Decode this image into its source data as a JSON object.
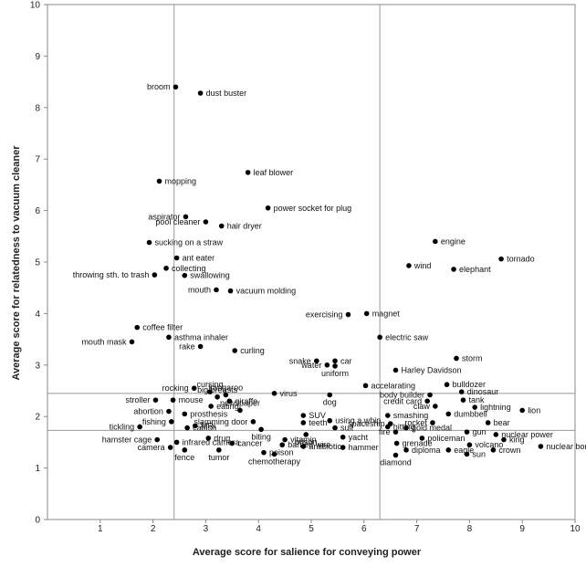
{
  "chart_data": {
    "type": "scatter",
    "title": "",
    "xlabel": "Average score for salience for conveying power",
    "ylabel": "Average score for relatedness to vacuum cleaner",
    "xlim": [
      0,
      10
    ],
    "ylim": [
      0,
      10
    ],
    "xticks": [
      1,
      2,
      3,
      4,
      5,
      6,
      7,
      8,
      9,
      10
    ],
    "yticks": [
      0,
      1,
      2,
      3,
      4,
      5,
      6,
      7,
      8,
      9,
      10
    ],
    "grid": false,
    "reference_lines": {
      "vertical": [
        2.4,
        6.3
      ],
      "horizontal": [
        2.45,
        1.73
      ]
    },
    "points": [
      {
        "label": "broom",
        "x": 2.43,
        "y": 8.4,
        "side": "left"
      },
      {
        "label": "dust buster",
        "x": 2.9,
        "y": 8.28,
        "side": "right"
      },
      {
        "label": "leaf blower",
        "x": 3.8,
        "y": 6.74,
        "side": "right"
      },
      {
        "label": "mopping",
        "x": 2.12,
        "y": 6.57,
        "side": "right"
      },
      {
        "label": "power socket for plug",
        "x": 4.18,
        "y": 6.05,
        "side": "right"
      },
      {
        "label": "aspirator",
        "x": 2.62,
        "y": 5.88,
        "side": "left"
      },
      {
        "label": "pool cleaner",
        "x": 3.0,
        "y": 5.78,
        "side": "left"
      },
      {
        "label": "hair dryer",
        "x": 3.3,
        "y": 5.7,
        "side": "right"
      },
      {
        "label": "sucking on a straw",
        "x": 1.93,
        "y": 5.38,
        "side": "right"
      },
      {
        "label": "engine",
        "x": 7.35,
        "y": 5.4,
        "side": "right"
      },
      {
        "label": "tornado",
        "x": 8.6,
        "y": 5.06,
        "side": "right"
      },
      {
        "label": "ant eater",
        "x": 2.45,
        "y": 5.08,
        "side": "right"
      },
      {
        "label": "collecting",
        "x": 2.25,
        "y": 4.88,
        "side": "right"
      },
      {
        "label": "wind",
        "x": 6.85,
        "y": 4.93,
        "side": "right"
      },
      {
        "label": "elephant",
        "x": 7.7,
        "y": 4.86,
        "side": "right"
      },
      {
        "label": "throwing sth. to trash",
        "x": 2.03,
        "y": 4.75,
        "side": "left"
      },
      {
        "label": "swallowing",
        "x": 2.6,
        "y": 4.74,
        "side": "right"
      },
      {
        "label": "mouth",
        "x": 3.2,
        "y": 4.46,
        "side": "left"
      },
      {
        "label": "vacuum molding",
        "x": 3.47,
        "y": 4.44,
        "side": "right"
      },
      {
        "label": "exercising",
        "x": 5.7,
        "y": 3.98,
        "side": "left"
      },
      {
        "label": "magnet",
        "x": 6.05,
        "y": 4.0,
        "side": "right"
      },
      {
        "label": "coffee filter",
        "x": 1.7,
        "y": 3.73,
        "side": "right"
      },
      {
        "label": "asthma inhaler",
        "x": 2.3,
        "y": 3.54,
        "side": "right"
      },
      {
        "label": "electric saw",
        "x": 6.3,
        "y": 3.54,
        "side": "right"
      },
      {
        "label": "mouth mask",
        "x": 1.6,
        "y": 3.45,
        "side": "left"
      },
      {
        "label": "rake",
        "x": 2.9,
        "y": 3.36,
        "side": "left"
      },
      {
        "label": "curling",
        "x": 3.55,
        "y": 3.28,
        "side": "right"
      },
      {
        "label": "snake",
        "x": 5.1,
        "y": 3.08,
        "side": "left"
      },
      {
        "label": "car",
        "x": 5.45,
        "y": 3.08,
        "side": "right"
      },
      {
        "label": "storm",
        "x": 7.75,
        "y": 3.13,
        "side": "right"
      },
      {
        "label": "water",
        "x": 5.3,
        "y": 3.0,
        "side": "left"
      },
      {
        "label": "uniform",
        "x": 5.45,
        "y": 2.98,
        "side": "below"
      },
      {
        "label": "Harley Davidson",
        "x": 6.6,
        "y": 2.9,
        "side": "right"
      },
      {
        "label": "accelarating",
        "x": 6.03,
        "y": 2.6,
        "side": "right"
      },
      {
        "label": "bulldozer",
        "x": 7.57,
        "y": 2.62,
        "side": "right"
      },
      {
        "label": "rocking",
        "x": 2.78,
        "y": 2.55,
        "side": "left"
      },
      {
        "label": "cursing",
        "x": 3.08,
        "y": 2.48,
        "side": "above"
      },
      {
        "label": "kangaroo",
        "x": 3.38,
        "y": 2.42,
        "side": "above"
      },
      {
        "label": "virus",
        "x": 4.3,
        "y": 2.45,
        "side": "right"
      },
      {
        "label": "dinosaur",
        "x": 7.85,
        "y": 2.48,
        "side": "right"
      },
      {
        "label": "big breasts",
        "x": 3.22,
        "y": 2.38,
        "side": "above"
      },
      {
        "label": "dog",
        "x": 5.35,
        "y": 2.42,
        "side": "below"
      },
      {
        "label": "body builder",
        "x": 7.25,
        "y": 2.42,
        "side": "left"
      },
      {
        "label": "stroller",
        "x": 2.05,
        "y": 2.32,
        "side": "left"
      },
      {
        "label": "mouse",
        "x": 2.38,
        "y": 2.32,
        "side": "right"
      },
      {
        "label": "giraffe",
        "x": 3.45,
        "y": 2.3,
        "side": "right"
      },
      {
        "label": "credit card",
        "x": 7.2,
        "y": 2.3,
        "side": "left"
      },
      {
        "label": "tank",
        "x": 7.88,
        "y": 2.32,
        "side": "right"
      },
      {
        "label": "eating",
        "x": 3.1,
        "y": 2.2,
        "side": "right"
      },
      {
        "label": "claw",
        "x": 7.35,
        "y": 2.2,
        "side": "left"
      },
      {
        "label": "lightning",
        "x": 8.1,
        "y": 2.18,
        "side": "right"
      },
      {
        "label": "abortion",
        "x": 2.3,
        "y": 2.1,
        "side": "left"
      },
      {
        "label": "newspaper",
        "x": 3.65,
        "y": 2.12,
        "side": "above"
      },
      {
        "label": "lion",
        "x": 9.0,
        "y": 2.12,
        "side": "right"
      },
      {
        "label": "prosthesis",
        "x": 2.6,
        "y": 2.05,
        "side": "right"
      },
      {
        "label": "SUV",
        "x": 4.85,
        "y": 2.02,
        "side": "right"
      },
      {
        "label": "smashing",
        "x": 6.45,
        "y": 2.02,
        "side": "right"
      },
      {
        "label": "dumbbell",
        "x": 7.6,
        "y": 2.05,
        "side": "right"
      },
      {
        "label": "fishing",
        "x": 2.35,
        "y": 1.9,
        "side": "left"
      },
      {
        "label": "slamming door",
        "x": 3.9,
        "y": 1.9,
        "side": "left"
      },
      {
        "label": "teeth",
        "x": 4.85,
        "y": 1.88,
        "side": "right"
      },
      {
        "label": "using a whip",
        "x": 5.35,
        "y": 1.92,
        "side": "right"
      },
      {
        "label": "spaceship",
        "x": 6.5,
        "y": 1.86,
        "side": "left"
      },
      {
        "label": "rocket",
        "x": 7.3,
        "y": 1.88,
        "side": "left"
      },
      {
        "label": "bear",
        "x": 8.35,
        "y": 1.88,
        "side": "right"
      },
      {
        "label": "MRI",
        "x": 2.8,
        "y": 1.82,
        "side": "right"
      },
      {
        "label": "catfish",
        "x": 2.65,
        "y": 1.78,
        "side": "right"
      },
      {
        "label": "tickling",
        "x": 1.75,
        "y": 1.8,
        "side": "left"
      },
      {
        "label": "hitting",
        "x": 6.45,
        "y": 1.8,
        "side": "right"
      },
      {
        "label": "gold medal",
        "x": 6.8,
        "y": 1.78,
        "side": "right"
      },
      {
        "label": "suit",
        "x": 5.45,
        "y": 1.78,
        "side": "right"
      },
      {
        "label": "biting",
        "x": 4.05,
        "y": 1.75,
        "side": "below"
      },
      {
        "label": "gun",
        "x": 7.95,
        "y": 1.7,
        "side": "right"
      },
      {
        "label": "fire",
        "x": 6.6,
        "y": 1.7,
        "side": "left"
      },
      {
        "label": "prison",
        "x": 4.9,
        "y": 1.65,
        "side": "below"
      },
      {
        "label": "yacht",
        "x": 5.6,
        "y": 1.6,
        "side": "right"
      },
      {
        "label": "hamster cage",
        "x": 2.08,
        "y": 1.55,
        "side": "left"
      },
      {
        "label": "drug",
        "x": 3.05,
        "y": 1.58,
        "side": "right"
      },
      {
        "label": "vitamin",
        "x": 4.5,
        "y": 1.55,
        "side": "right"
      },
      {
        "label": "policeman",
        "x": 7.1,
        "y": 1.58,
        "side": "right"
      },
      {
        "label": "king",
        "x": 8.65,
        "y": 1.55,
        "side": "right"
      },
      {
        "label": "nuclear power",
        "x": 8.5,
        "y": 1.65,
        "side": "right"
      },
      {
        "label": "infrared camera",
        "x": 2.45,
        "y": 1.5,
        "side": "right"
      },
      {
        "label": "cancer",
        "x": 3.5,
        "y": 1.48,
        "side": "right"
      },
      {
        "label": "barbed wire",
        "x": 4.45,
        "y": 1.45,
        "side": "right"
      },
      {
        "label": "antibiotic",
        "x": 4.85,
        "y": 1.42,
        "side": "right"
      },
      {
        "label": "grenade",
        "x": 6.62,
        "y": 1.48,
        "side": "right"
      },
      {
        "label": "volcano",
        "x": 8.0,
        "y": 1.45,
        "side": "right"
      },
      {
        "label": "hammer",
        "x": 5.6,
        "y": 1.4,
        "side": "right"
      },
      {
        "label": "crown",
        "x": 8.45,
        "y": 1.35,
        "side": "right"
      },
      {
        "label": "camera",
        "x": 2.33,
        "y": 1.4,
        "side": "left"
      },
      {
        "label": "fence",
        "x": 2.6,
        "y": 1.35,
        "side": "below"
      },
      {
        "label": "tumor",
        "x": 3.25,
        "y": 1.35,
        "side": "below"
      },
      {
        "label": "poison",
        "x": 4.1,
        "y": 1.3,
        "side": "right"
      },
      {
        "label": "diploma",
        "x": 6.8,
        "y": 1.35,
        "side": "right"
      },
      {
        "label": "eagle",
        "x": 7.6,
        "y": 1.35,
        "side": "right"
      },
      {
        "label": "nuclear bomb",
        "x": 9.35,
        "y": 1.42,
        "side": "right"
      },
      {
        "label": "chemotherapy",
        "x": 4.3,
        "y": 1.27,
        "side": "below"
      },
      {
        "label": "sun",
        "x": 7.95,
        "y": 1.27,
        "side": "right"
      },
      {
        "label": "diamond",
        "x": 6.6,
        "y": 1.25,
        "side": "below"
      }
    ]
  }
}
